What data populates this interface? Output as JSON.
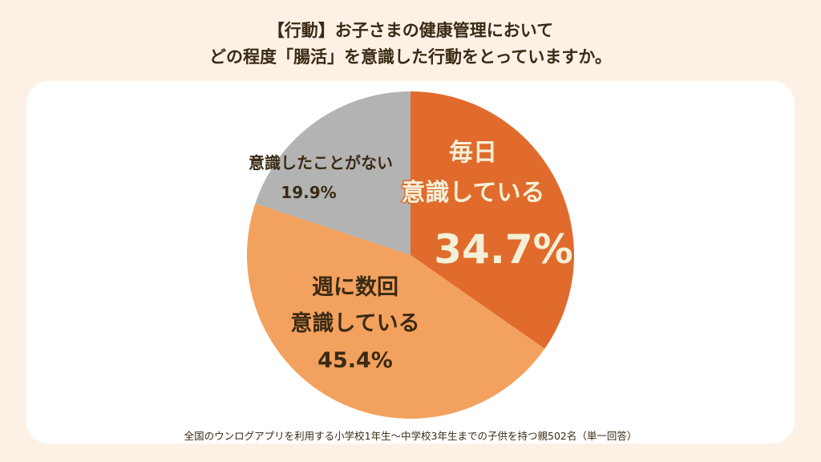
{
  "title_lines": [
    "【行動】お子さまの健康管理において",
    "どの程度「腸活」を意識した行動をとっていますか。"
  ],
  "footnote": "全国のウンログアプリを利用する小学校1年生～中学校3年生までの子供を持つ親502名（単一回答）",
  "chart_data": {
    "type": "pie",
    "start": "top, clockwise",
    "slices": [
      {
        "label": "毎日\n意識している",
        "value": 34.7,
        "display": "34.7%",
        "color": "#e06b2c",
        "text_color": "#f4f0d8"
      },
      {
        "label": "週に数回\n意識している",
        "value": 45.4,
        "display": "45.4%",
        "color": "#f3a15e",
        "text_color": "#3a2a14"
      },
      {
        "label": "意識したことがない",
        "value": 19.9,
        "display": "19.9%",
        "color": "#b3b3b3",
        "text_color": "#3a2a14"
      }
    ]
  },
  "background_color": "#fdf1e6"
}
